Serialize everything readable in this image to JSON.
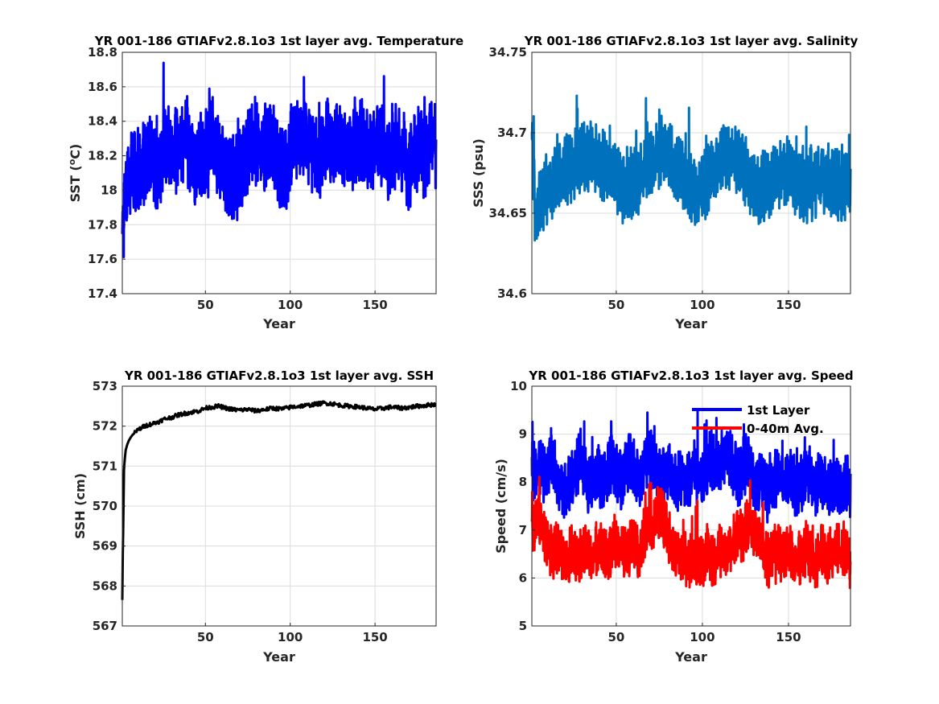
{
  "chart_data": [
    {
      "type": "line",
      "title": "YR 001-186 GTIAFv2.8.1o3 1st layer avg. Temperature",
      "xlabel": "Year",
      "ylabel": "SST (°C)",
      "ylabel_parts": [
        "SST (",
        "o",
        "C)"
      ],
      "xlim": [
        1,
        186
      ],
      "ylim": [
        17.4,
        18.8
      ],
      "xticks": [
        50,
        100,
        150
      ],
      "xtick_labels": [
        "50",
        "100",
        "150"
      ],
      "yticks": [
        17.4,
        17.6,
        17.8,
        18,
        18.2,
        18.4,
        18.6,
        18.8
      ],
      "ytick_labels": [
        "17.4",
        "17.6",
        "17.8",
        "18",
        "18.2",
        "18.4",
        "18.6",
        "18.8"
      ],
      "grid": true,
      "series": [
        {
          "color": "#0000ff",
          "linewidth": 3,
          "samples_per_year": 12,
          "values": [
            17.7,
            18.0,
            18.1,
            18.12,
            18.08,
            18.12,
            18.15,
            18.18,
            18.2,
            18.16,
            18.08,
            18.15,
            18.22,
            18.28,
            18.2,
            18.25,
            18.3,
            18.24,
            18.28,
            18.3,
            18.22,
            18.18,
            18.12,
            18.2,
            18.22,
            18.26,
            18.3,
            18.26,
            18.22,
            18.18,
            18.14,
            18.08,
            18.1,
            18.05,
            18.1,
            18.14,
            18.2,
            18.25,
            18.3,
            18.28,
            18.24,
            18.2,
            18.25,
            18.3,
            18.28,
            18.22,
            18.14,
            18.1,
            18.12,
            18.18,
            18.24,
            18.3,
            18.28,
            18.26,
            18.3,
            18.28,
            18.2,
            18.16,
            18.2,
            18.24,
            18.28,
            18.25,
            18.28,
            18.3,
            18.26,
            18.22,
            18.18,
            18.2,
            18.24,
            18.26,
            18.28,
            18.25,
            18.22,
            18.24,
            18.28,
            18.3,
            18.26,
            18.22,
            18.18,
            18.22,
            18.26,
            18.24,
            18.2,
            18.16,
            18.12,
            18.18,
            18.22,
            18.26,
            18.24,
            18.2,
            18.28,
            18.3,
            18.25
          ],
          "amplitude": 0.2
        }
      ]
    },
    {
      "type": "line",
      "title": "YR 001-186 GTIAFv2.8.1o3 1st layer avg. Salinity",
      "xlabel": "Year",
      "ylabel": "SSS (psu)",
      "xlim": [
        1,
        186
      ],
      "ylim": [
        34.6,
        34.75
      ],
      "xticks": [
        50,
        100,
        150
      ],
      "xtick_labels": [
        "50",
        "100",
        "150"
      ],
      "yticks": [
        34.6,
        34.65,
        34.7,
        34.75
      ],
      "ytick_labels": [
        "34.6",
        "34.65",
        "34.7",
        "34.75"
      ],
      "grid": true,
      "series": [
        {
          "color": "#0072bd",
          "linewidth": 3,
          "samples_per_year": 12,
          "values": [
            34.7,
            34.648,
            34.655,
            34.66,
            34.663,
            34.665,
            34.668,
            34.67,
            34.672,
            34.675,
            34.677,
            34.678,
            34.68,
            34.682,
            34.684,
            34.686,
            34.686,
            34.685,
            34.684,
            34.682,
            34.68,
            34.678,
            34.676,
            34.674,
            34.672,
            34.67,
            34.667,
            34.665,
            34.664,
            34.665,
            34.668,
            34.672,
            34.676,
            34.68,
            34.683,
            34.685,
            34.687,
            34.688,
            34.688,
            34.686,
            34.684,
            34.682,
            34.679,
            34.676,
            34.672,
            34.668,
            34.665,
            34.663,
            34.662,
            34.664,
            34.668,
            34.672,
            34.676,
            34.68,
            34.683,
            34.685,
            34.686,
            34.686,
            34.685,
            34.683,
            34.68,
            34.677,
            34.674,
            34.671,
            34.668,
            34.666,
            34.665,
            34.666,
            34.668,
            34.67,
            34.672,
            34.674,
            34.675,
            34.675,
            34.675,
            34.673,
            34.671,
            34.669,
            34.667,
            34.666,
            34.666,
            34.667,
            34.668,
            34.67,
            34.671,
            34.672,
            34.671,
            34.67,
            34.668,
            34.666,
            34.665,
            34.667,
            34.665
          ],
          "amplitude": 0.018
        }
      ]
    },
    {
      "type": "line",
      "title": "YR 001-186 GTIAFv2.8.1o3 1st layer avg. SSH",
      "xlabel": "Year",
      "ylabel": "SSH (cm)",
      "xlim": [
        1,
        186
      ],
      "ylim": [
        567,
        573
      ],
      "xticks": [
        50,
        100,
        150
      ],
      "xtick_labels": [
        "50",
        "100",
        "150"
      ],
      "yticks": [
        567,
        568,
        569,
        570,
        571,
        572,
        573
      ],
      "ytick_labels": [
        "567",
        "568",
        "569",
        "570",
        "571",
        "572",
        "573"
      ],
      "grid": true,
      "series": [
        {
          "color": "#000000",
          "linewidth": 3,
          "x": [
            1,
            1.3,
            1.7,
            2,
            2.5,
            3,
            4,
            5,
            6,
            7,
            8,
            10,
            12,
            14,
            16,
            18,
            20,
            23,
            26,
            30,
            34,
            38,
            42,
            46,
            50,
            54,
            58,
            62,
            66,
            70,
            75,
            80,
            85,
            90,
            95,
            100,
            105,
            110,
            115,
            120,
            125,
            130,
            135,
            140,
            145,
            150,
            155,
            160,
            165,
            170,
            175,
            180,
            186
          ],
          "values": [
            567.65,
            568.8,
            570.0,
            570.9,
            571.2,
            571.4,
            571.55,
            571.65,
            571.72,
            571.78,
            571.82,
            571.9,
            571.95,
            572.0,
            572.03,
            572.05,
            572.08,
            572.12,
            572.18,
            572.22,
            572.28,
            572.32,
            572.35,
            572.38,
            572.45,
            572.48,
            572.5,
            572.45,
            572.42,
            572.4,
            572.42,
            572.38,
            572.42,
            572.45,
            572.43,
            572.47,
            572.5,
            572.52,
            572.55,
            572.58,
            572.56,
            572.52,
            572.5,
            572.48,
            572.45,
            572.42,
            572.45,
            572.48,
            572.45,
            572.47,
            572.5,
            572.52,
            572.55
          ],
          "amplitude": 0.05
        }
      ]
    },
    {
      "type": "line",
      "title": "YR 001-186 GTIAFv2.8.1o3 1st layer avg. Speed",
      "xlabel": "Year",
      "ylabel": "Speed (cm/s)",
      "xlim": [
        1,
        186
      ],
      "ylim": [
        5,
        10
      ],
      "xticks": [
        50,
        100,
        150
      ],
      "xtick_labels": [
        "50",
        "100",
        "150"
      ],
      "yticks": [
        5,
        6,
        7,
        8,
        9,
        10
      ],
      "ytick_labels": [
        "5",
        "6",
        "7",
        "8",
        "9",
        "10"
      ],
      "grid": true,
      "legend": "top-right",
      "series": [
        {
          "name": "1st Layer",
          "color": "#0000ff",
          "linewidth": 3,
          "samples_per_year": 12,
          "values": [
            8.3,
            8.2,
            8.4,
            8.2,
            8.1,
            8.3,
            8.5,
            8.2,
            8.0,
            7.9,
            7.8,
            8.0,
            8.1,
            8.3,
            8.5,
            8.3,
            8.0,
            7.9,
            8.1,
            8.2,
            8.0,
            8.1,
            8.3,
            8.4,
            8.2,
            8.1,
            8.0,
            8.3,
            8.5,
            8.4,
            8.2,
            8.1,
            8.3,
            8.5,
            8.6,
            8.4,
            8.2,
            8.1,
            8.2,
            8.3,
            8.1,
            7.9,
            8.0,
            8.2,
            8.1,
            8.0,
            8.2,
            8.3,
            8.1,
            7.9,
            8.2,
            8.4,
            8.5,
            8.3,
            8.4,
            8.5,
            8.6,
            8.5,
            8.3,
            8.2,
            8.1,
            8.3,
            8.4,
            8.2,
            8.0,
            7.9,
            8.1,
            8.0,
            7.8,
            7.9,
            8.0,
            8.2,
            8.1,
            8.0,
            8.1,
            8.0,
            7.9,
            7.8,
            8.0,
            8.1,
            8.2,
            8.0,
            7.9,
            8.1,
            8.0,
            7.9,
            7.8,
            8.0,
            7.9,
            7.8,
            7.9,
            8.0,
            7.9
          ],
          "amplitude": 0.5
        },
        {
          "name": "0-40m Avg.",
          "color": "#ff0000",
          "linewidth": 3,
          "samples_per_year": 12,
          "values": [
            6.8,
            7.2,
            7.3,
            7.1,
            6.8,
            6.6,
            6.5,
            6.6,
            6.7,
            6.4,
            6.3,
            6.5,
            6.6,
            6.4,
            6.5,
            6.6,
            6.5,
            6.4,
            6.5,
            6.6,
            6.7,
            6.5,
            6.4,
            6.6,
            6.8,
            6.7,
            6.6,
            6.5,
            6.6,
            6.7,
            6.6,
            6.5,
            6.8,
            7.1,
            7.2,
            7.0,
            7.3,
            7.4,
            7.2,
            7.0,
            6.8,
            6.6,
            6.5,
            6.4,
            6.5,
            6.3,
            6.4,
            6.5,
            6.4,
            6.3,
            6.4,
            6.5,
            6.3,
            6.4,
            6.6,
            6.5,
            6.4,
            6.6,
            6.7,
            6.9,
            7.0,
            6.8,
            7.1,
            7.2,
            7.0,
            6.9,
            6.7,
            6.6,
            6.4,
            6.5,
            6.7,
            6.6,
            6.5,
            6.4,
            6.6,
            6.5,
            6.3,
            6.4,
            6.5,
            6.6,
            6.5,
            6.4,
            6.3,
            6.5,
            6.6,
            6.4,
            6.5,
            6.6,
            6.7,
            6.5,
            6.6,
            6.5,
            6.4
          ],
          "amplitude": 0.45
        }
      ]
    }
  ]
}
